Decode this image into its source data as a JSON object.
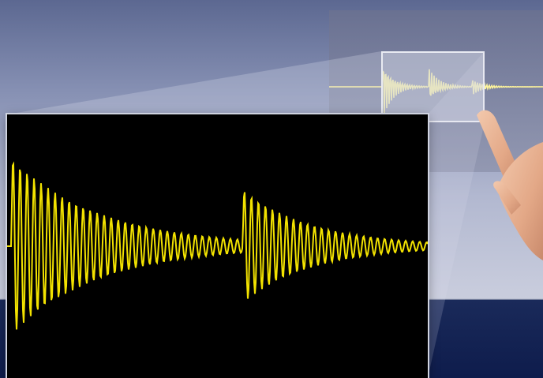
{
  "colors": {
    "waveform": "#f2e200",
    "waveform_dim": "#fff59a",
    "scope_background": "#000000",
    "backdrop_top": "#5c6891",
    "backdrop_bottom": "#0f1f4f"
  },
  "scene": {
    "description_icons": [
      "zoom-lens-icon",
      "hand-pointer-icon"
    ]
  },
  "waveform": {
    "bursts": [
      {
        "onset": 0.0,
        "peak": 1.0,
        "decay": 0.21
      },
      {
        "onset": 0.55,
        "peak": 0.57,
        "decay": 0.16
      }
    ],
    "mini_bursts": [
      {
        "onset": 0.0,
        "peak": 1.0
      },
      {
        "onset": 0.3,
        "peak": 0.6
      },
      {
        "onset": 0.58,
        "peak": 0.28
      }
    ]
  }
}
